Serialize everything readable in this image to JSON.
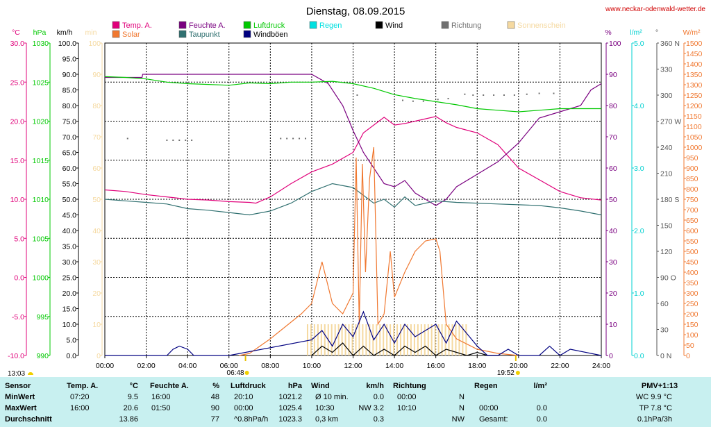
{
  "header": {
    "title": "Dienstag, 08.09.2015",
    "site": "www.neckar-odenwald-wetter.de"
  },
  "legend": [
    {
      "label": "Temp. A.",
      "color": "#e0007a"
    },
    {
      "label": "Feuchte A.",
      "color": "#7a0080"
    },
    {
      "label": "Luftdruck",
      "color": "#00c800"
    },
    {
      "label": "Regen",
      "color": "#00e0e0"
    },
    {
      "label": "Wind",
      "color": "#000000"
    },
    {
      "label": "Richtung",
      "color": "#707070"
    },
    {
      "label": "Sonnenschein",
      "color": "#f5d9a0"
    },
    {
      "label": "Solar",
      "color": "#f07830"
    },
    {
      "label": "Taupunkt",
      "color": "#307070"
    },
    {
      "label": "Windböen",
      "color": "#000080"
    }
  ],
  "axis_headers": {
    "temp": "°C",
    "press": "hPa",
    "wind": "km/h",
    "sun": "min",
    "hum": "%",
    "rain": "l/m²",
    "dir": "°",
    "solar": "W/m²"
  },
  "chart_data": {
    "type": "line",
    "xlabel": "",
    "x_ticks": [
      "00:00",
      "02:00",
      "04:00",
      "06:00",
      "08:00",
      "10:00",
      "12:00",
      "14:00",
      "16:00",
      "18:00",
      "20:00",
      "22:00",
      "24:00"
    ],
    "axes": {
      "temp": {
        "unit": "°C",
        "range": [
          -10,
          30
        ],
        "ticks": [
          "30.0",
          "25.0",
          "20.0",
          "15.0",
          "10.0",
          "5.0",
          "0.0",
          "-5.0",
          "-10.0"
        ]
      },
      "press": {
        "unit": "hPa",
        "range": [
          990,
          1030
        ],
        "ticks": [
          "1030",
          "1025",
          "1020",
          "1015",
          "1010",
          "1005",
          "1000",
          "995",
          "990"
        ]
      },
      "wind": {
        "unit": "km/h",
        "range": [
          0,
          100
        ],
        "ticks": [
          "100.0",
          "95.0",
          "90.0",
          "85.0",
          "80.0",
          "75.0",
          "70.0",
          "65.0",
          "60.0",
          "55.0",
          "50.0",
          "45.0",
          "40.0",
          "35.0",
          "30.0",
          "25.0",
          "20.0",
          "15.0",
          "10.0",
          "5.0",
          "0.0"
        ]
      },
      "sun": {
        "unit": "min",
        "range": [
          0,
          100
        ],
        "ticks": [
          "100",
          "90",
          "80",
          "70",
          "60",
          "50",
          "40",
          "30",
          "20",
          "10",
          "0"
        ]
      },
      "hum": {
        "unit": "%",
        "range": [
          0,
          100
        ],
        "ticks": [
          "100",
          "90",
          "80",
          "70",
          "60",
          "50",
          "40",
          "30",
          "20",
          "10",
          "0"
        ]
      },
      "rain": {
        "unit": "l/m²",
        "range": [
          0,
          5
        ],
        "ticks": [
          "5.0",
          "4.0",
          "3.0",
          "2.0",
          "1.0",
          "0.0"
        ]
      },
      "dir": {
        "unit": "°",
        "range": [
          0,
          360
        ],
        "ticks": [
          "360 N",
          "330",
          "300",
          "270 W",
          "240",
          "210",
          "180 S",
          "150",
          "120",
          "90 O",
          "60",
          "30",
          "0 N"
        ]
      },
      "solar": {
        "unit": "W/m²",
        "range": [
          0,
          1500
        ],
        "ticks": [
          "1500",
          "1450",
          "1400",
          "1350",
          "1300",
          "1250",
          "1200",
          "1150",
          "1100",
          "1050",
          "1000",
          "950",
          "900",
          "850",
          "800",
          "750",
          "700",
          "650",
          "600",
          "550",
          "500",
          "450",
          "400",
          "350",
          "300",
          "250",
          "200",
          "150",
          "100",
          "50",
          "0"
        ]
      }
    },
    "series": [
      {
        "name": "Temp. A.",
        "axis": "temp",
        "color": "#e0007a",
        "x": [
          0,
          1,
          2,
          3,
          4,
          5,
          6,
          7,
          7.3,
          8,
          9,
          10,
          11,
          12,
          12.5,
          13,
          13.5,
          14,
          14.5,
          15,
          16,
          16.5,
          17,
          18,
          19,
          20,
          21,
          22,
          23,
          24
        ],
        "y": [
          11.2,
          11.0,
          10.6,
          10.3,
          10.0,
          9.9,
          9.7,
          9.6,
          9.5,
          10.3,
          12.0,
          13.5,
          14.5,
          16.0,
          18.5,
          19.5,
          20.5,
          19.5,
          19.7,
          20.0,
          20.6,
          19.8,
          19.2,
          18.5,
          17.0,
          14.0,
          12.5,
          11.0,
          10.2,
          9.9
        ]
      },
      {
        "name": "Feuchte A.",
        "axis": "hum",
        "color": "#7a0080",
        "x": [
          0,
          1.8,
          1.83,
          5,
          10,
          10.8,
          11.5,
          12,
          12.5,
          13,
          13.5,
          14,
          14.5,
          15,
          15.5,
          16,
          16.5,
          17,
          18,
          19,
          20,
          20.5,
          21,
          22,
          23,
          23.5,
          24
        ],
        "y": [
          89,
          89,
          90,
          90,
          90,
          87,
          80,
          72,
          65,
          60,
          55,
          54,
          56,
          52,
          50,
          48,
          50,
          54,
          58,
          62,
          68,
          72,
          76,
          78,
          80,
          85,
          87
        ]
      },
      {
        "name": "Luftdruck",
        "axis": "press",
        "color": "#00c800",
        "x": [
          0,
          1,
          2,
          3,
          4,
          5,
          6,
          7,
          8,
          9,
          10,
          11,
          12,
          13,
          14,
          15,
          16,
          17,
          18,
          19,
          20,
          21,
          22,
          23,
          24
        ],
        "y": [
          1025.7,
          1025.6,
          1025.4,
          1025.0,
          1024.8,
          1024.7,
          1024.6,
          1024.9,
          1024.8,
          1025.0,
          1025.0,
          1025.1,
          1024.8,
          1024.2,
          1023.4,
          1022.9,
          1022.5,
          1022.1,
          1021.6,
          1021.4,
          1021.2,
          1021.4,
          1021.6,
          1021.6,
          1021.6
        ]
      },
      {
        "name": "Taupunkt",
        "axis": "temp",
        "color": "#307070",
        "x": [
          0,
          1,
          2,
          3,
          4,
          5,
          6,
          7,
          8,
          9,
          10,
          11,
          12,
          13,
          13.5,
          14,
          14.5,
          15,
          16,
          17,
          18,
          19,
          20,
          21,
          22,
          23,
          24
        ],
        "y": [
          10.0,
          9.8,
          9.6,
          9.4,
          8.8,
          8.6,
          8.3,
          8.0,
          8.5,
          9.5,
          11.0,
          12.0,
          11.5,
          9.5,
          10.0,
          9.0,
          10.3,
          9.2,
          9.8,
          9.6,
          9.5,
          9.4,
          9.3,
          9.2,
          8.9,
          8.5,
          8.0
        ]
      },
      {
        "name": "Solar",
        "axis": "solar",
        "color": "#f07830",
        "x": [
          6.5,
          7,
          8,
          9,
          9.5,
          10,
          10.5,
          11,
          11.5,
          12,
          12.15,
          12.3,
          12.45,
          12.6,
          12.8,
          13,
          13.2,
          13.5,
          13.8,
          14,
          14.5,
          15,
          15.5,
          16,
          16.2,
          16.5,
          17,
          18,
          19,
          20
        ],
        "y": [
          0,
          10,
          80,
          160,
          200,
          250,
          450,
          250,
          200,
          300,
          950,
          150,
          920,
          400,
          850,
          1000,
          150,
          200,
          500,
          280,
          400,
          500,
          550,
          560,
          500,
          150,
          80,
          30,
          10,
          0
        ]
      },
      {
        "name": "Wind",
        "axis": "wind",
        "color": "#000000",
        "x": [
          10,
          10.5,
          11,
          11.5,
          12,
          12.5,
          13,
          13.5,
          14,
          14.5,
          15,
          15.5,
          16,
          16.5,
          17,
          17.5,
          18,
          18.5,
          19
        ],
        "y": [
          0,
          3,
          1,
          4,
          0,
          3,
          0,
          2,
          0,
          3,
          1,
          3,
          0,
          2,
          1,
          0,
          1,
          0,
          0
        ]
      },
      {
        "name": "Windböen",
        "axis": "wind",
        "color": "#000080",
        "x": [
          0,
          3,
          3.3,
          3.6,
          4,
          4.3,
          6,
          10,
          10.5,
          11,
          11.5,
          12,
          12.5,
          13,
          13.5,
          14,
          14.5,
          15,
          15.5,
          16,
          16.5,
          17,
          17.5,
          18,
          18.5,
          19,
          19.5,
          20,
          21,
          21.5,
          22,
          22.5,
          24
        ],
        "y": [
          0,
          0,
          2,
          3,
          2,
          0,
          0,
          5,
          8,
          3,
          10,
          6,
          14,
          5,
          10,
          4,
          10,
          6,
          8,
          10,
          4,
          11,
          7,
          3,
          0,
          0,
          2,
          0,
          0,
          3,
          0,
          2,
          0
        ]
      }
    ],
    "sunshine": {
      "axis": "sun",
      "color": "#f5d9a0",
      "from": 9.8,
      "to": 17.5,
      "value": 10
    },
    "direction_points": {
      "axis": "dir",
      "color": "#707070",
      "x": [
        1.1,
        3.0,
        3.3,
        3.6,
        3.9,
        4.2,
        8.5,
        8.8,
        9.1,
        9.4,
        9.7,
        12.2,
        14.0,
        14.4,
        14.9,
        15.4,
        16.1,
        16.6,
        17.4,
        17.8,
        18.3,
        18.8,
        19.3,
        19.8,
        20.4,
        21.0,
        21.7
      ],
      "y": [
        250,
        248,
        248,
        248,
        248,
        248,
        250,
        250,
        250,
        250,
        250,
        300,
        295,
        294,
        293,
        293,
        295,
        296,
        301,
        300,
        300,
        300,
        300,
        300,
        301,
        302,
        302
      ]
    },
    "markers": {
      "sunrise": "06:48",
      "sunset": "19:52",
      "moon": "13:03"
    }
  },
  "stats": {
    "headers": {
      "sensor": "Sensor",
      "temp": "Temp. A.",
      "temp_unit": "°C",
      "hum": "Feuchte A.",
      "hum_unit": "%",
      "press": "Luftdruck",
      "press_unit": "hPa",
      "wind": "Wind",
      "wind_unit": "km/h",
      "dir": "Richtung",
      "rain": "Regen",
      "rain_unit": "l/m²",
      "pmv": "PMV+1:13"
    },
    "rows": [
      {
        "label": "MinWert",
        "temp_time": "07:20",
        "temp_val": "9.5",
        "hum_time": "16:00",
        "hum_val": "48",
        "press_time": "20:10",
        "press_val": "1021.2",
        "wind_time": "Ø 10 min.",
        "wind_val": "0.0",
        "dir_time": "00:00",
        "dir_val": "N",
        "rain_time": "",
        "rain_val": "",
        "pmv": "WC 9.9 °C"
      },
      {
        "label": "MaxWert",
        "temp_time": "16:00",
        "temp_val": "20.6",
        "hum_time": "01:50",
        "hum_val": "90",
        "press_time": "00:00",
        "press_val": "1025.4",
        "wind_time": "10:30",
        "wind_val": "NW 3.2",
        "dir_time": "10:10",
        "dir_val": "N",
        "rain_time": "00:00",
        "rain_val": "0.0",
        "pmv": "TP 7.8 °C"
      },
      {
        "label": "Durchschnitt",
        "temp_time": "",
        "temp_val": "13.86",
        "hum_time": "",
        "hum_val": "77",
        "press_time": "^0.8hPa/h",
        "press_val": "1023.3",
        "wind_time": "0,3 km",
        "wind_val": "0.3",
        "dir_time": "",
        "dir_val": "NW",
        "rain_time": "Gesamt:",
        "rain_val": "0.0",
        "pmv": "0.1hPa/3h"
      }
    ]
  }
}
